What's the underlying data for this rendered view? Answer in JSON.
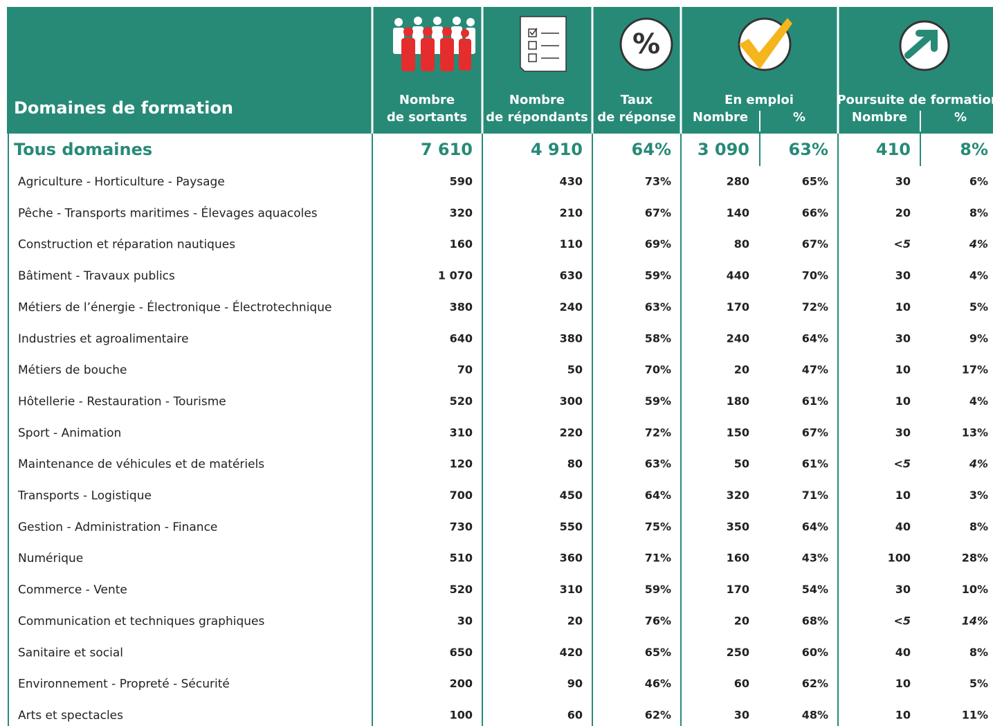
{
  "header": {
    "title": "Domaines de formation",
    "icon_percent": "%",
    "sortants": [
      "Nombre",
      "de sortants"
    ],
    "repondants": [
      "Nombre",
      "de répondants"
    ],
    "taux": [
      "Taux",
      "de réponse"
    ],
    "emploi": {
      "label": "En emploi",
      "sub": [
        "Nombre",
        "%"
      ]
    },
    "poursuite": {
      "label": "Poursuite de formation",
      "sub": [
        "Nombre",
        "%"
      ]
    }
  },
  "total": {
    "label": "Tous domaines",
    "cells": [
      "7 610",
      "4 910",
      "64%",
      "3 090",
      "63%",
      "410",
      "8%"
    ]
  },
  "rows": [
    {
      "label": "Agriculture - Horticulture - Paysage",
      "cells": [
        "590",
        "430",
        "73%",
        "280",
        "65%",
        "30",
        "6%"
      ]
    },
    {
      "label": "Pêche - Transports maritimes - Élevages aquacoles",
      "cells": [
        "320",
        "210",
        "67%",
        "140",
        "66%",
        "20",
        "8%"
      ]
    },
    {
      "label": "Construction et réparation nautiques",
      "cells": [
        "160",
        "110",
        "69%",
        "80",
        "67%",
        "<5",
        "4%"
      ]
    },
    {
      "label": "Bâtiment - Travaux publics",
      "cells": [
        "1 070",
        "630",
        "59%",
        "440",
        "70%",
        "30",
        "4%"
      ]
    },
    {
      "label": "Métiers de l’énergie - Électronique - Électrotechnique",
      "cells": [
        "380",
        "240",
        "63%",
        "170",
        "72%",
        "10",
        "5%"
      ]
    },
    {
      "label": "Industries et agroalimentaire",
      "cells": [
        "640",
        "380",
        "58%",
        "240",
        "64%",
        "30",
        "9%"
      ]
    },
    {
      "label": "Métiers de bouche",
      "cells": [
        "70",
        "50",
        "70%",
        "20",
        "47%",
        "10",
        "17%"
      ]
    },
    {
      "label": "Hôtellerie - Restauration - Tourisme",
      "cells": [
        "520",
        "300",
        "59%",
        "180",
        "61%",
        "10",
        "4%"
      ]
    },
    {
      "label": "Sport - Animation",
      "cells": [
        "310",
        "220",
        "72%",
        "150",
        "67%",
        "30",
        "13%"
      ]
    },
    {
      "label": "Maintenance de véhicules et de matériels",
      "cells": [
        "120",
        "80",
        "63%",
        "50",
        "61%",
        "<5",
        "4%"
      ]
    },
    {
      "label": "Transports - Logistique",
      "cells": [
        "700",
        "450",
        "64%",
        "320",
        "71%",
        "10",
        "3%"
      ]
    },
    {
      "label": "Gestion - Administration - Finance",
      "cells": [
        "730",
        "550",
        "75%",
        "350",
        "64%",
        "40",
        "8%"
      ]
    },
    {
      "label": "Numérique",
      "cells": [
        "510",
        "360",
        "71%",
        "160",
        "43%",
        "100",
        "28%"
      ]
    },
    {
      "label": "Commerce - Vente",
      "cells": [
        "520",
        "310",
        "59%",
        "170",
        "54%",
        "30",
        "10%"
      ]
    },
    {
      "label": "Communication et techniques graphiques",
      "cells": [
        "30",
        "20",
        "76%",
        "20",
        "68%",
        "<5",
        "14%"
      ]
    },
    {
      "label": "Sanitaire et social",
      "cells": [
        "650",
        "420",
        "65%",
        "250",
        "60%",
        "40",
        "8%"
      ]
    },
    {
      "label": "Environnement - Propreté - Sécurité",
      "cells": [
        "200",
        "90",
        "46%",
        "60",
        "62%",
        "10",
        "5%"
      ]
    },
    {
      "label": "Arts et spectacles",
      "cells": [
        "100",
        "60",
        "62%",
        "30",
        "48%",
        "10",
        "11%"
      ]
    }
  ]
}
